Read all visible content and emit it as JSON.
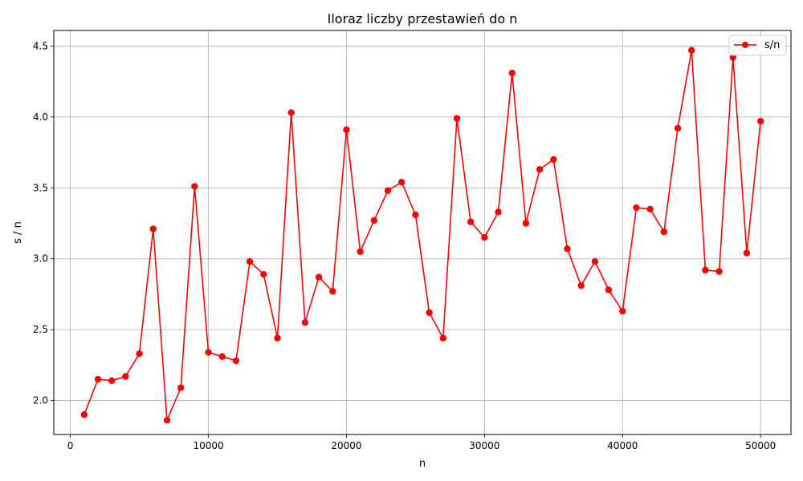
{
  "chart_data": {
    "type": "line",
    "title": "Iloraz liczby przestawień do n",
    "xlabel": "n",
    "ylabel": "s / n",
    "xlim": [
      -1200,
      52200
    ],
    "ylim": [
      1.76,
      4.61
    ],
    "xticks": [
      0,
      10000,
      20000,
      30000,
      40000,
      50000
    ],
    "yticks": [
      2.0,
      2.5,
      3.0,
      3.5,
      4.0,
      4.5
    ],
    "grid": true,
    "legend_position": "top-right",
    "series_color": "#ff0000",
    "series": [
      {
        "name": "s/n",
        "x": [
          1000,
          2000,
          3000,
          4000,
          5000,
          6000,
          7000,
          8000,
          9000,
          10000,
          11000,
          12000,
          13000,
          14000,
          15000,
          16000,
          17000,
          18000,
          19000,
          20000,
          21000,
          22000,
          23000,
          24000,
          25000,
          26000,
          27000,
          28000,
          29000,
          30000,
          31000,
          32000,
          33000,
          34000,
          35000,
          36000,
          37000,
          38000,
          39000,
          40000,
          41000,
          42000,
          43000,
          44000,
          45000,
          46000,
          47000,
          48000,
          49000,
          50000
        ],
        "y": [
          1.9,
          2.15,
          2.14,
          2.17,
          2.33,
          3.21,
          1.86,
          2.09,
          3.51,
          2.34,
          2.31,
          2.28,
          2.98,
          2.89,
          2.44,
          4.03,
          2.55,
          2.87,
          2.77,
          3.91,
          3.05,
          3.27,
          3.48,
          3.54,
          3.31,
          2.62,
          2.44,
          3.99,
          3.26,
          3.15,
          3.33,
          4.31,
          3.25,
          3.63,
          3.7,
          3.07,
          2.81,
          2.98,
          2.78,
          2.63,
          3.36,
          3.35,
          3.19,
          3.92,
          4.47,
          2.92,
          2.91,
          4.42,
          3.04,
          3.97
        ]
      }
    ]
  }
}
